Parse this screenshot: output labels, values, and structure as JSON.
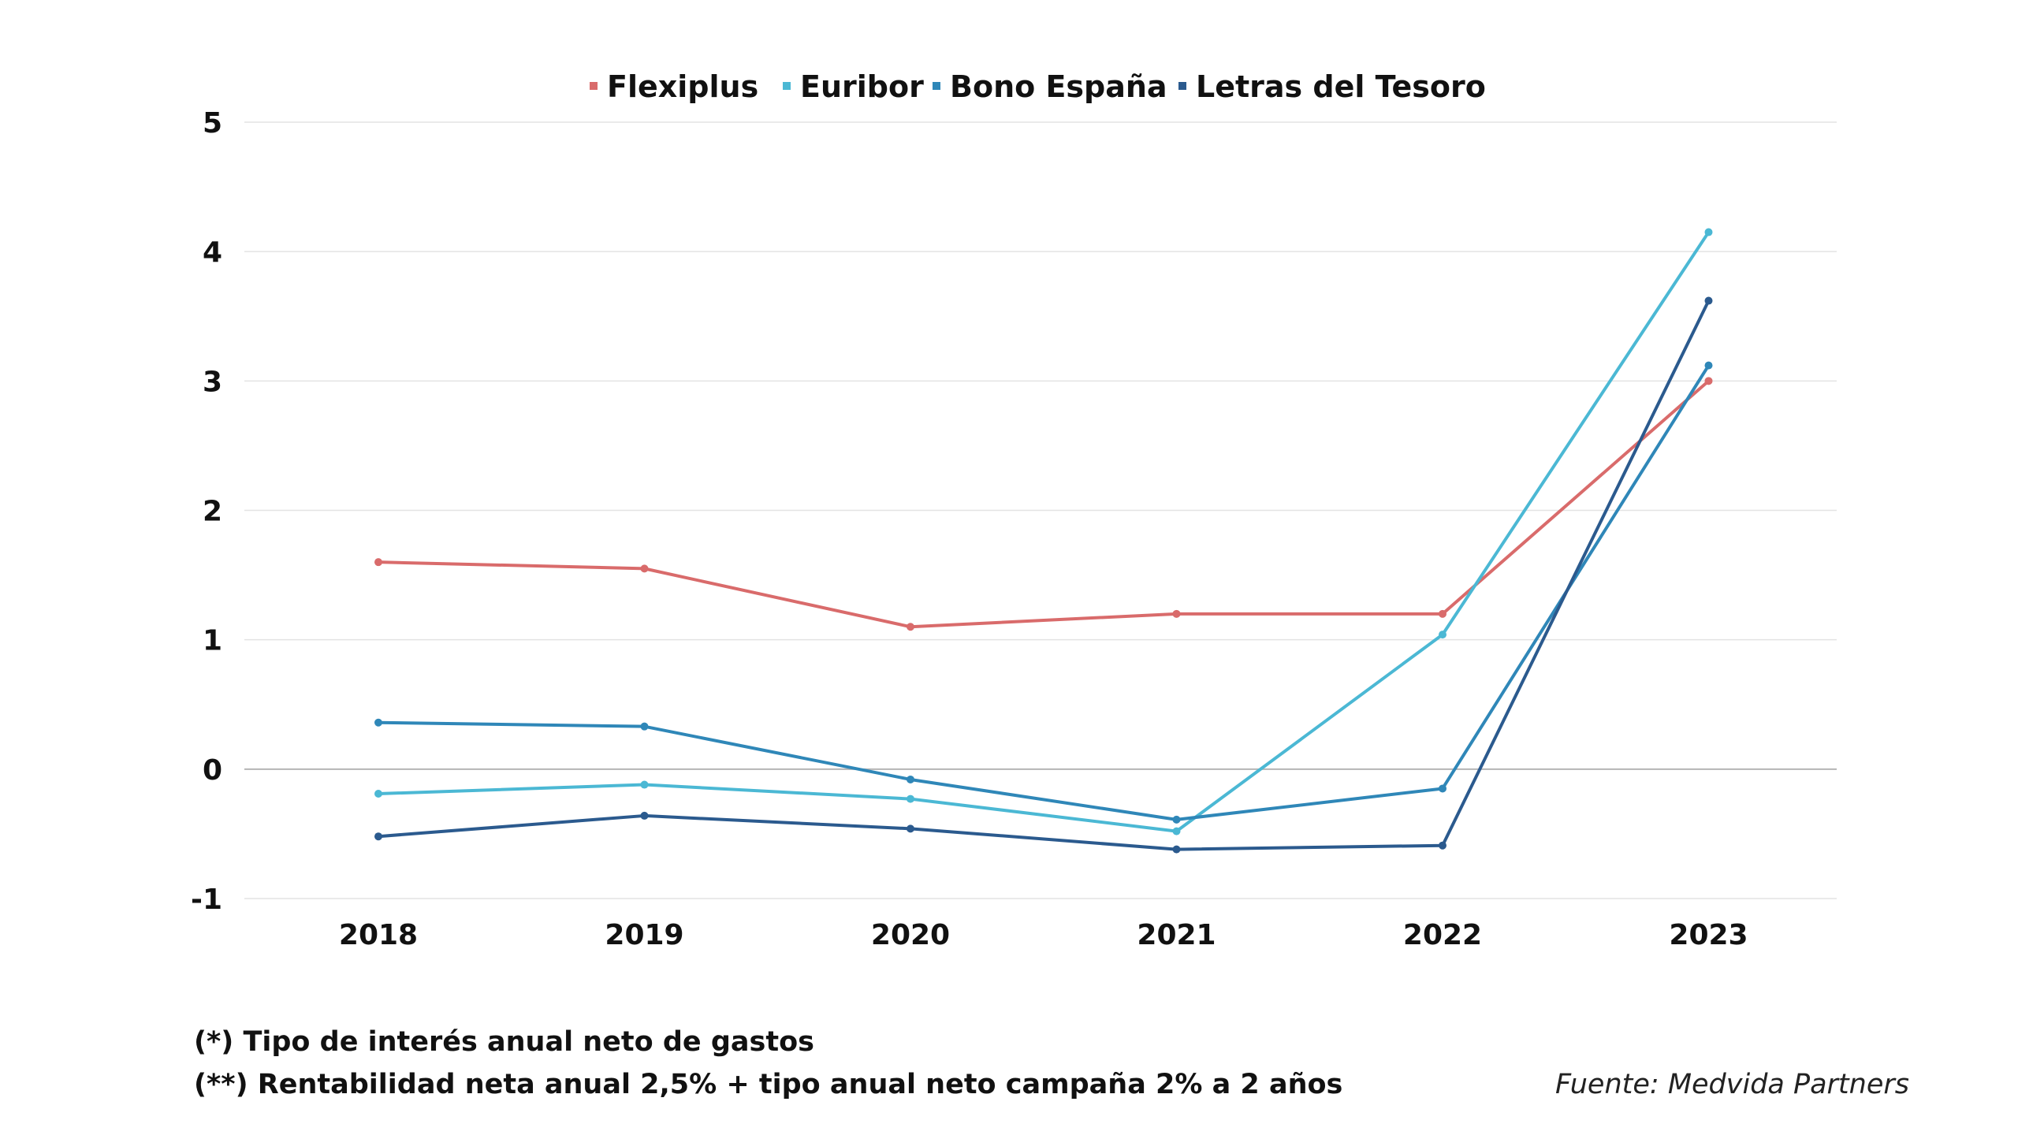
{
  "chart_data": {
    "type": "line",
    "categories": [
      "2018",
      "2019",
      "2020",
      "2021",
      "2022",
      "2023"
    ],
    "series": [
      {
        "name": "Flexiplus",
        "color": "#D96B6B",
        "values": [
          1.6,
          1.55,
          1.1,
          1.2,
          1.2,
          3.0
        ]
      },
      {
        "name": "Euribor",
        "color": "#4BB8D4",
        "values": [
          -0.19,
          -0.12,
          -0.23,
          -0.48,
          1.04,
          4.15
        ]
      },
      {
        "name": "Bono España",
        "color": "#2F87B8",
        "values": [
          0.36,
          0.33,
          -0.08,
          -0.39,
          -0.15,
          3.12
        ]
      },
      {
        "name": "Letras del Tesoro",
        "color": "#2B5A8E",
        "values": [
          -0.52,
          -0.36,
          -0.46,
          -0.62,
          -0.59,
          3.62
        ]
      }
    ],
    "ylim": [
      -1,
      5
    ],
    "yticks": [
      "-1",
      "0",
      "1",
      "2",
      "3",
      "4",
      "5"
    ],
    "grid": true,
    "legend_position": "top",
    "title": "",
    "xlabel": "",
    "ylabel": ""
  },
  "footnotes": {
    "note1": "(*) Tipo de interés anual neto de gastos",
    "note2": "(**) Rentabilidad neta anual 2,5% + tipo anual neto campaña 2% a 2 años",
    "source": "Fuente: Medvida Partners"
  }
}
